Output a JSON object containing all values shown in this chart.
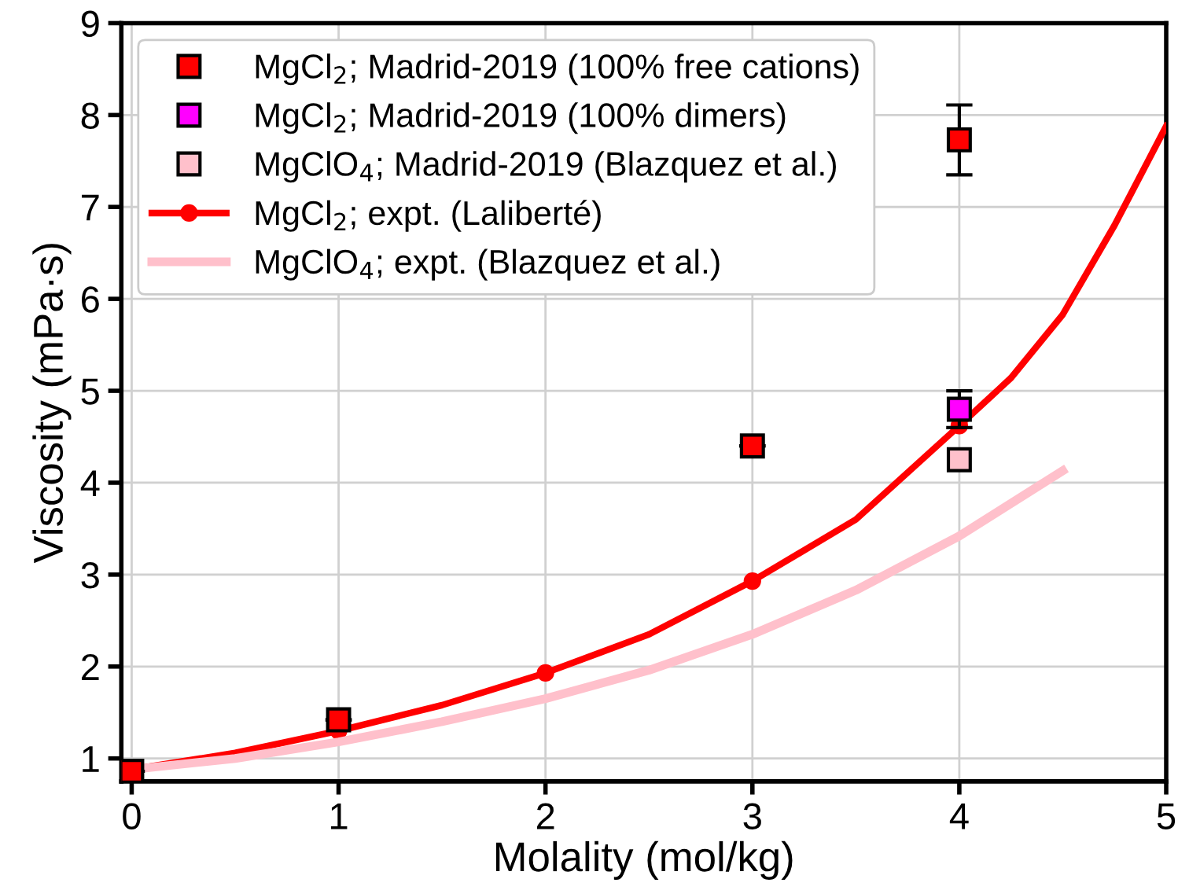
{
  "chart_data": {
    "type": "scatter",
    "xlabel": "Molality (mol/kg)",
    "ylabel": "Viscosity (mPa·s)",
    "xlim": [
      -0.05,
      5
    ],
    "ylim": [
      0.75,
      9
    ],
    "xticks": [
      0,
      1,
      2,
      3,
      4,
      5
    ],
    "yticks": [
      1,
      2,
      3,
      4,
      5,
      6,
      7,
      8,
      9
    ],
    "grid": true,
    "legend": "top left",
    "series": [
      {
        "name": "MgCl$_{2}$; Madrid-2019 (100% free cations)",
        "marker": "square",
        "color": "#ff0000",
        "x": [
          0,
          1,
          3,
          4
        ],
        "values": [
          0.86,
          1.42,
          4.4,
          7.73
        ],
        "errors": [
          null,
          null,
          null,
          0.38
        ]
      },
      {
        "name": "MgCl$_{2}$; Madrid-2019 (100% dimers)",
        "marker": "square",
        "color": "#ff00ff",
        "x": [
          4
        ],
        "values": [
          4.8
        ],
        "errors": [
          0.2
        ]
      },
      {
        "name": "MgClO$_{4}$; Madrid-2019 (Blazquez et al.)",
        "marker": "square",
        "color": "#ffc0cb",
        "x": [
          4
        ],
        "values": [
          4.25
        ]
      },
      {
        "name": "MgCl$_{2}$; expt. (Laliberté)",
        "type": "line",
        "marker": "none",
        "color": "#ff0000",
        "x": [
          0,
          0.5,
          1,
          1.5,
          2,
          2.5,
          3,
          3.5,
          4,
          4.25,
          4.5,
          4.75,
          5
        ],
        "values": [
          0.88,
          1.06,
          1.3,
          1.58,
          1.93,
          2.35,
          2.93,
          3.6,
          4.62,
          5.14,
          5.83,
          6.8,
          7.88
        ]
      },
      {
        "marker": "circle",
        "color": "#ff0000",
        "x": [
          1,
          2,
          3,
          4
        ],
        "values": [
          1.3,
          1.93,
          2.93,
          4.62
        ]
      },
      {
        "name": "MgClO$_{4}$; expt. (Blazquez et al.)",
        "type": "line",
        "marker": "none",
        "color": "#ffc0cb",
        "x": [
          0,
          0.5,
          1,
          1.5,
          2,
          2.5,
          3,
          3.5,
          4,
          4.5
        ],
        "values": [
          0.88,
          1.0,
          1.18,
          1.4,
          1.65,
          1.96,
          2.35,
          2.83,
          3.42,
          4.13
        ]
      }
    ]
  }
}
